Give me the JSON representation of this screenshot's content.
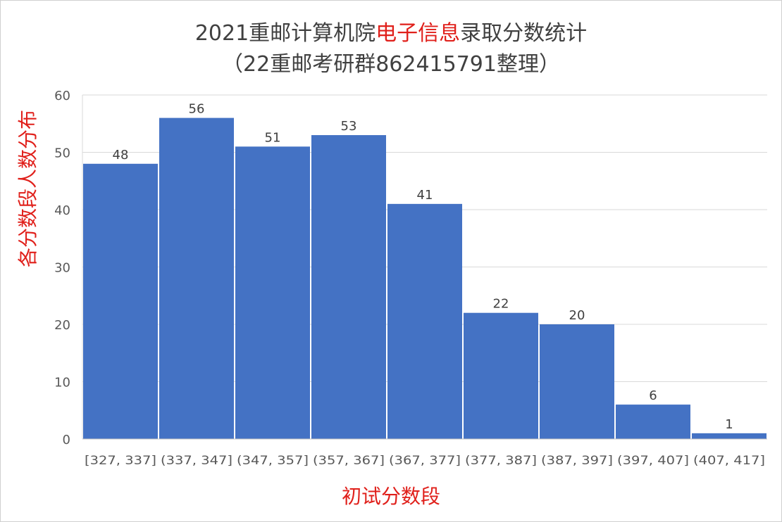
{
  "title": {
    "part1": "2021重邮计算机院",
    "highlight": "电子信息",
    "part2": "录取分数统计",
    "subtitle": "（22重邮考研群862415791整理）"
  },
  "colors": {
    "bar": "#4472c4",
    "highlight": "#e0201b",
    "grid": "#d9d9d9"
  },
  "chart_data": {
    "type": "bar",
    "title": "2021重邮计算机院电子信息录取分数统计",
    "subtitle": "（22重邮考研群862415791整理）",
    "xlabel": "初试分数段",
    "ylabel": "各分数段人数分布",
    "categories": [
      "[327, 337]",
      "(337, 347]",
      "(347, 357]",
      "(357, 367]",
      "(367, 377]",
      "(377, 387]",
      "(387, 397]",
      "(397, 407]",
      "(407, 417]"
    ],
    "values": [
      48,
      56,
      51,
      53,
      41,
      22,
      20,
      6,
      1
    ],
    "ylim": [
      0,
      60
    ],
    "yticks": [
      0,
      10,
      20,
      30,
      40,
      50,
      60
    ],
    "grid": true,
    "data_labels": true,
    "legend": "none"
  }
}
